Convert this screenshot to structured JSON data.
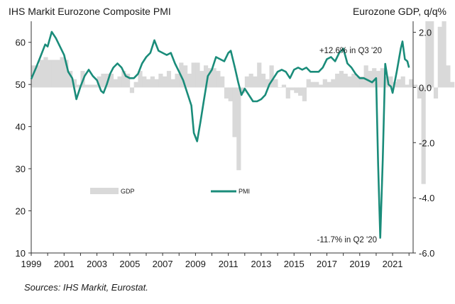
{
  "chart_data": {
    "type": "bar+line",
    "title_left": "IHS Markit Eurozone Composite  PMI",
    "title_right": "Eurozone GDP, q/q%",
    "source": "Sources: IHS Markit, Eurostat.",
    "left_axis": {
      "min": 10,
      "max": 65,
      "ticks": [
        10,
        20,
        30,
        40,
        50,
        60
      ]
    },
    "right_axis": {
      "min": -6.0,
      "max": 2.4,
      "ticks": [
        "2.0",
        "0.0",
        "-2.0",
        "-4.0",
        "-6.0"
      ]
    },
    "x_axis": {
      "min": 1999,
      "max": 2022.25,
      "tick_labels": [
        "1999",
        "2001",
        "2003",
        "2005",
        "2007",
        "2009",
        "2011",
        "2013",
        "2015",
        "2017",
        "2019",
        "2021"
      ]
    },
    "legend": [
      "GDP",
      "PMI"
    ],
    "annotations": [
      "+12.6% in Q3 '20",
      "-11.7% in Q2 '20"
    ],
    "colors": {
      "gdp": "#d9d9d9",
      "pmi": "#1a8c7a",
      "axis": "#333333"
    },
    "gdp_series": {
      "name": "GDP",
      "start": 1999,
      "step": 0.25,
      "values": [
        0.8,
        0.8,
        1.0,
        1.1,
        1.0,
        1.0,
        1.0,
        1.1,
        1.0,
        0.6,
        0.3,
        0.1,
        0.6,
        0.1,
        0.1,
        0.1,
        0.4,
        0.5,
        0.5,
        0.5,
        0.3,
        0.4,
        0.6,
        0.5,
        -0.2,
        0.2,
        0.6,
        0.4,
        0.3,
        0.4,
        0.3,
        0.5,
        0.4,
        0.6,
        0.3,
        0.5,
        0.9,
        0.8,
        0.5,
        0.9,
        0.9,
        0.6,
        0.8,
        0.7,
        0.7,
        0.6,
        0.4,
        -0.4,
        -0.5,
        -1.8,
        -3.0,
        -0.2,
        0.4,
        0.5,
        0.4,
        0.9,
        0.5,
        0.3,
        0.8,
        0.3,
        0.0,
        0.1,
        -0.4,
        -0.1,
        -0.2,
        -0.3,
        -0.5,
        0.3,
        0.2,
        0.2,
        0.1,
        0.3,
        0.2,
        0.3,
        0.5,
        0.6,
        0.5,
        0.4,
        0.5,
        0.4,
        0.4,
        0.8,
        0.6,
        0.7,
        0.6,
        0.7,
        0.4,
        0.4,
        0.2,
        0.3,
        0.4,
        0.1,
        0.3,
        0.1,
        -0.4,
        -3.5,
        2.4,
        2.4,
        -0.4,
        2.2,
        2.4,
        0.8,
        0.2
      ]
    },
    "pmi_series": {
      "name": "PMI",
      "points": [
        [
          1999.0,
          51.3
        ],
        [
          1999.3,
          54.0
        ],
        [
          1999.6,
          57.0
        ],
        [
          1999.85,
          59.5
        ],
        [
          2000.0,
          59.0
        ],
        [
          2000.25,
          62.5
        ],
        [
          2000.5,
          61.0
        ],
        [
          2000.75,
          59.0
        ],
        [
          2001.0,
          57.0
        ],
        [
          2001.25,
          53.0
        ],
        [
          2001.5,
          51.5
        ],
        [
          2001.75,
          46.5
        ],
        [
          2002.0,
          49.5
        ],
        [
          2002.25,
          52.0
        ],
        [
          2002.5,
          53.5
        ],
        [
          2002.75,
          52.0
        ],
        [
          2003.0,
          51.0
        ],
        [
          2003.25,
          48.5
        ],
        [
          2003.4,
          48.0
        ],
        [
          2003.6,
          50.0
        ],
        [
          2003.8,
          52.5
        ],
        [
          2004.0,
          54.0
        ],
        [
          2004.25,
          55.0
        ],
        [
          2004.5,
          54.0
        ],
        [
          2004.75,
          52.0
        ],
        [
          2005.0,
          51.5
        ],
        [
          2005.25,
          51.5
        ],
        [
          2005.5,
          52.5
        ],
        [
          2005.75,
          55.0
        ],
        [
          2006.0,
          56.5
        ],
        [
          2006.25,
          57.5
        ],
        [
          2006.5,
          60.5
        ],
        [
          2006.75,
          58.0
        ],
        [
          2007.0,
          57.5
        ],
        [
          2007.25,
          57.0
        ],
        [
          2007.5,
          57.5
        ],
        [
          2007.75,
          55.0
        ],
        [
          2008.0,
          53.0
        ],
        [
          2008.25,
          51.0
        ],
        [
          2008.5,
          48.0
        ],
        [
          2008.75,
          45.0
        ],
        [
          2008.9,
          38.5
        ],
        [
          2009.1,
          36.5
        ],
        [
          2009.3,
          41.0
        ],
        [
          2009.5,
          46.0
        ],
        [
          2009.75,
          52.0
        ],
        [
          2010.0,
          53.5
        ],
        [
          2010.25,
          56.5
        ],
        [
          2010.5,
          56.0
        ],
        [
          2010.75,
          55.5
        ],
        [
          2011.0,
          57.5
        ],
        [
          2011.15,
          58.0
        ],
        [
          2011.4,
          54.0
        ],
        [
          2011.6,
          50.5
        ],
        [
          2011.8,
          47.5
        ],
        [
          2012.0,
          49.0
        ],
        [
          2012.25,
          47.5
        ],
        [
          2012.5,
          46.0
        ],
        [
          2012.75,
          46.0
        ],
        [
          2013.0,
          46.5
        ],
        [
          2013.25,
          47.5
        ],
        [
          2013.5,
          50.0
        ],
        [
          2013.75,
          51.5
        ],
        [
          2014.0,
          53.0
        ],
        [
          2014.25,
          53.5
        ],
        [
          2014.5,
          53.0
        ],
        [
          2014.75,
          51.5
        ],
        [
          2015.0,
          53.5
        ],
        [
          2015.25,
          54.0
        ],
        [
          2015.5,
          53.5
        ],
        [
          2015.75,
          54.0
        ],
        [
          2016.0,
          53.0
        ],
        [
          2016.25,
          53.0
        ],
        [
          2016.5,
          53.0
        ],
        [
          2016.75,
          54.0
        ],
        [
          2017.0,
          56.0
        ],
        [
          2017.25,
          56.5
        ],
        [
          2017.5,
          55.5
        ],
        [
          2017.75,
          57.5
        ],
        [
          2018.0,
          58.5
        ],
        [
          2018.25,
          55.0
        ],
        [
          2018.5,
          54.0
        ],
        [
          2018.75,
          52.5
        ],
        [
          2019.0,
          51.5
        ],
        [
          2019.25,
          51.5
        ],
        [
          2019.5,
          51.0
        ],
        [
          2019.75,
          50.5
        ],
        [
          2020.0,
          51.5
        ],
        [
          2020.12,
          31.0
        ],
        [
          2020.25,
          13.6
        ],
        [
          2020.4,
          32.0
        ],
        [
          2020.55,
          54.9
        ],
        [
          2020.75,
          50.0
        ],
        [
          2020.9,
          49.5
        ],
        [
          2021.0,
          48.0
        ],
        [
          2021.25,
          53.0
        ],
        [
          2021.5,
          58.5
        ],
        [
          2021.6,
          60.2
        ],
        [
          2021.75,
          56.0
        ],
        [
          2021.9,
          55.5
        ],
        [
          2022.0,
          54.0
        ]
      ]
    }
  }
}
